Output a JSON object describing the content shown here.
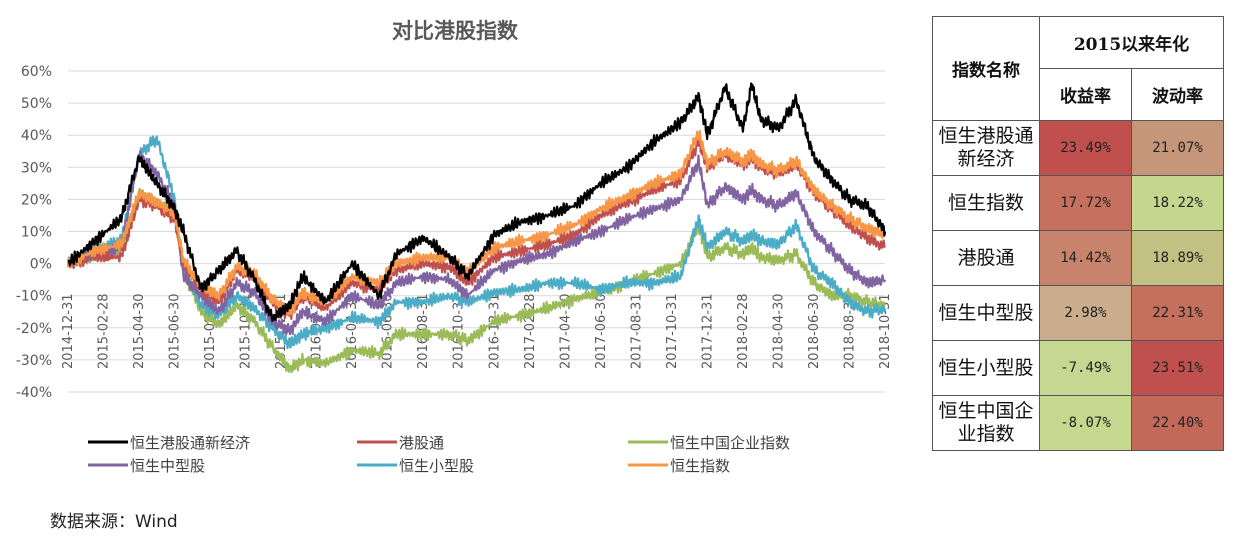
{
  "chart_data": {
    "type": "line",
    "title": "对比港股指数",
    "xlabel": "",
    "ylabel": "",
    "ylim": [
      -40,
      60
    ],
    "yticks": [
      -40,
      -30,
      -20,
      -10,
      0,
      10,
      20,
      30,
      40,
      50,
      60
    ],
    "ytick_labels": [
      "-40%",
      "-30%",
      "-20%",
      "-10%",
      "0%",
      "10%",
      "20%",
      "30%",
      "40%",
      "50%",
      "60%"
    ],
    "xlim": [
      0,
      46
    ],
    "xticks": [
      0,
      2,
      4,
      6,
      8,
      10,
      12,
      14,
      16,
      18,
      20,
      22,
      24,
      26,
      28,
      30,
      32,
      34,
      36,
      38,
      40,
      42,
      44,
      46
    ],
    "xtick_labels": [
      "2014-12-31",
      "2015-02-28",
      "2015-04-30",
      "2015-06-30",
      "2015-08-31",
      "2015-10-31",
      "2015-12-31",
      "2016-02-29",
      "2016-04-30",
      "2016-06-30",
      "2016-08-31",
      "2016-10-31",
      "2016-12-31",
      "2017-02-28",
      "2017-04-30",
      "2017-06-30",
      "2017-08-31",
      "2017-10-31",
      "2017-12-31",
      "2018-02-28",
      "2018-04-30",
      "2018-06-30",
      "2018-08-31",
      "2018-10-31"
    ],
    "grid": true,
    "legend_position": "bottom",
    "series": [
      {
        "name": "恒生港股通新经济",
        "color": "#000000",
        "x": [
          0,
          1.5,
          3,
          4,
          5,
          6,
          6.5,
          7.5,
          8.5,
          9.5,
          10.5,
          11.5,
          12.5,
          13.2,
          14.5,
          16,
          17.5,
          18.5,
          20,
          21.5,
          22.5,
          24,
          25.5,
          27,
          28.5,
          30,
          31.5,
          33,
          34.5,
          35.5,
          36,
          37,
          38,
          38.5,
          39,
          40,
          41,
          42,
          43,
          44,
          45,
          46
        ],
        "y": [
          0,
          7,
          14,
          33,
          25,
          17,
          10,
          -8,
          -2,
          4,
          -5,
          -17,
          -13,
          -4,
          -12,
          0,
          -10,
          3,
          8,
          2,
          -4,
          9,
          13,
          15,
          18,
          25,
          30,
          38,
          44,
          52,
          40,
          55,
          42,
          56,
          45,
          42,
          51,
          33,
          26,
          20,
          18,
          10
        ]
      },
      {
        "name": "港股通",
        "color": "#c0504d",
        "x": [
          0,
          1.5,
          3,
          4,
          5,
          6,
          6.5,
          7.5,
          8.5,
          9.5,
          10.5,
          11.5,
          12.5,
          13.2,
          14.5,
          16,
          17.5,
          18.5,
          20,
          21.5,
          22.5,
          24,
          25.5,
          27,
          28.5,
          30,
          31.5,
          33,
          34.5,
          35.5,
          36,
          37,
          38,
          38.5,
          39,
          40,
          41,
          42,
          43,
          44,
          45,
          46
        ],
        "y": [
          0,
          2,
          2,
          20,
          18,
          14,
          0,
          -8,
          -12,
          -2,
          -4,
          -12,
          -16,
          -10,
          -14,
          -6,
          -8,
          -2,
          0,
          -1,
          -6,
          2,
          4,
          6,
          9,
          15,
          19,
          23,
          26,
          38,
          30,
          34,
          31,
          33,
          30,
          28,
          31,
          22,
          17,
          12,
          8,
          5
        ]
      },
      {
        "name": "恒生中国企业指数",
        "color": "#9bbb59",
        "x": [
          0,
          1.5,
          3,
          4,
          5,
          6,
          6.5,
          7.5,
          8.5,
          9.5,
          10.5,
          11.5,
          12.5,
          13.2,
          14.5,
          16,
          17.5,
          18.5,
          20,
          21.5,
          22.5,
          24,
          25.5,
          27,
          28.5,
          30,
          31.5,
          33,
          34.5,
          35.5,
          36,
          37,
          38,
          38.5,
          39,
          40,
          41,
          42,
          43,
          44,
          45,
          46
        ],
        "y": [
          0,
          2,
          4,
          22,
          19,
          16,
          -2,
          -15,
          -19,
          -13,
          -18,
          -26,
          -33,
          -30,
          -31,
          -27,
          -28,
          -22,
          -22,
          -22,
          -24,
          -18,
          -16,
          -14,
          -11,
          -9,
          -6,
          -3,
          0,
          12,
          2,
          5,
          3,
          5,
          2,
          1,
          3,
          -6,
          -10,
          -10,
          -12,
          -13
        ]
      },
      {
        "name": "恒生中型股",
        "color": "#8064a2",
        "x": [
          0,
          1.5,
          3,
          4,
          5,
          6,
          6.5,
          7.5,
          8.5,
          9.5,
          10.5,
          11.5,
          12.5,
          13.2,
          14.5,
          16,
          17.5,
          18.5,
          20,
          21.5,
          22.5,
          24,
          25.5,
          27,
          28.5,
          30,
          31.5,
          33,
          34.5,
          35.5,
          36,
          37,
          38,
          38.5,
          39,
          40,
          41,
          42,
          43,
          44,
          45,
          46
        ],
        "y": [
          0,
          3,
          5,
          34,
          28,
          18,
          -4,
          -10,
          -15,
          -6,
          -9,
          -18,
          -21,
          -15,
          -18,
          -10,
          -13,
          -6,
          -4,
          -5,
          -10,
          -2,
          1,
          3,
          7,
          10,
          14,
          17,
          20,
          32,
          18,
          24,
          20,
          23,
          20,
          18,
          22,
          10,
          4,
          -2,
          -6,
          -5
        ]
      },
      {
        "name": "恒生小型股",
        "color": "#4bacc6",
        "x": [
          0,
          1.5,
          3,
          4,
          5,
          6,
          6.5,
          7.5,
          8.5,
          9.5,
          10.5,
          11.5,
          12.5,
          13.2,
          14.5,
          16,
          17.5,
          18.5,
          20,
          21.5,
          22.5,
          24,
          25.5,
          27,
          28.5,
          30,
          31.5,
          33,
          34.5,
          35.5,
          36,
          37,
          38,
          38.5,
          39,
          40,
          41,
          42,
          43,
          44,
          45,
          46
        ],
        "y": [
          0,
          5,
          7,
          34,
          39,
          20,
          -2,
          -13,
          -16,
          -10,
          -14,
          -20,
          -25,
          -22,
          -20,
          -17,
          -18,
          -12,
          -12,
          -10,
          -12,
          -9,
          -8,
          -6,
          -6,
          -8,
          -6,
          -6,
          -4,
          14,
          5,
          10,
          7,
          9,
          7,
          6,
          12,
          -2,
          -6,
          -12,
          -15,
          -14
        ]
      },
      {
        "name": "恒生指数",
        "color": "#f79646",
        "x": [
          0,
          1.5,
          3,
          4,
          5,
          6,
          6.5,
          7.5,
          8.5,
          9.5,
          10.5,
          11.5,
          12.5,
          13.2,
          14.5,
          16,
          17.5,
          18.5,
          20,
          21.5,
          22.5,
          24,
          25.5,
          27,
          28.5,
          30,
          31.5,
          33,
          34.5,
          35.5,
          36,
          37,
          38,
          38.5,
          39,
          40,
          41,
          42,
          43,
          44,
          45,
          46
        ],
        "y": [
          0,
          4,
          6,
          22,
          19,
          16,
          1,
          -7,
          -10,
          -1,
          -3,
          -11,
          -15,
          -9,
          -12,
          -4,
          -6,
          0,
          2,
          2,
          -3,
          5,
          7,
          9,
          12,
          17,
          21,
          25,
          28,
          41,
          31,
          35,
          32,
          34,
          31,
          29,
          32,
          23,
          18,
          14,
          11,
          9
        ]
      }
    ]
  },
  "table": {
    "header_name": "指数名称",
    "header_group": "2015以来年化",
    "col_return": "收益率",
    "col_volatility": "波动率",
    "rows": [
      {
        "name_line1": "恒生港股通",
        "name_line2": "新经济",
        "return": "23.49%",
        "volatility": "21.07%",
        "return_color": "#c0504d",
        "volatility_color": "#c6967a"
      },
      {
        "name_line1": "恒生指数",
        "name_line2": "",
        "return": "17.72%",
        "volatility": "18.22%",
        "return_color": "#c67060",
        "volatility_color": "#c5d78f"
      },
      {
        "name_line1": "港股通",
        "name_line2": "",
        "return": "14.42%",
        "volatility": "18.89%",
        "return_color": "#c7836c",
        "volatility_color": "#c2c183"
      },
      {
        "name_line1": "恒生中型股",
        "name_line2": "",
        "return": "2.98%",
        "volatility": "22.31%",
        "return_color": "#c9ad8c",
        "volatility_color": "#c56f5d"
      },
      {
        "name_line1": "恒生小型股",
        "name_line2": "",
        "return": "-7.49%",
        "volatility": "23.51%",
        "return_color": "#c5d790",
        "volatility_color": "#c0504d"
      },
      {
        "name_line1": "恒生中国企",
        "name_line2": "业指数",
        "return": "-8.07%",
        "volatility": "22.40%",
        "return_color": "#c4d98f",
        "volatility_color": "#c2695a"
      }
    ]
  },
  "source": "数据来源：Wind"
}
